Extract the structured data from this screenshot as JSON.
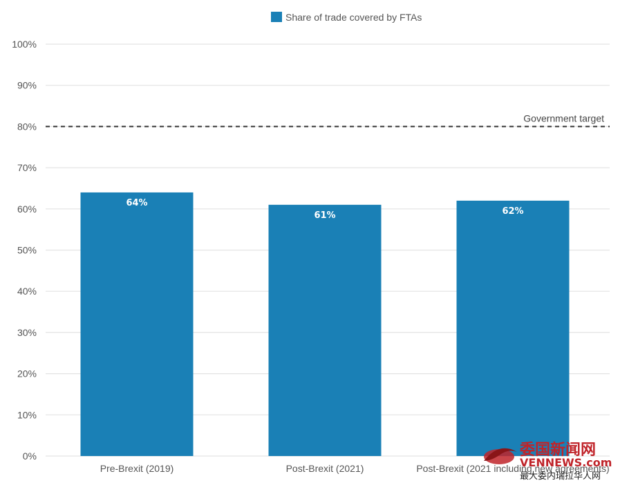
{
  "chart_data": {
    "type": "bar",
    "categories": [
      "Pre-Brexit (2019)",
      "Post-Brexit (2021)",
      "Post-Brexit (2021 including new agreements)"
    ],
    "series": [
      {
        "name": "Share of trade covered by FTAs",
        "values": [
          64,
          61,
          62
        ]
      }
    ],
    "data_labels": [
      "64%",
      "61%",
      "62%"
    ],
    "ylim": [
      0,
      100
    ],
    "yticks": [
      0,
      10,
      20,
      30,
      40,
      50,
      60,
      70,
      80,
      90,
      100
    ],
    "ytick_labels": [
      "0%",
      "10%",
      "20%",
      "30%",
      "40%",
      "50%",
      "60%",
      "70%",
      "80%",
      "90%",
      "100%"
    ],
    "reference_line": {
      "value": 80,
      "label": "Government target",
      "style": "dashed"
    },
    "grid": true,
    "legend_position": "top-center",
    "colors": {
      "bar": "#1a80b6",
      "grid": "#e3e3e3",
      "reference": "#333333"
    }
  },
  "watermark": {
    "title": "委国新闻网",
    "site": "VENNEWS.com",
    "subtitle": "最大委内瑞拉华人网"
  }
}
